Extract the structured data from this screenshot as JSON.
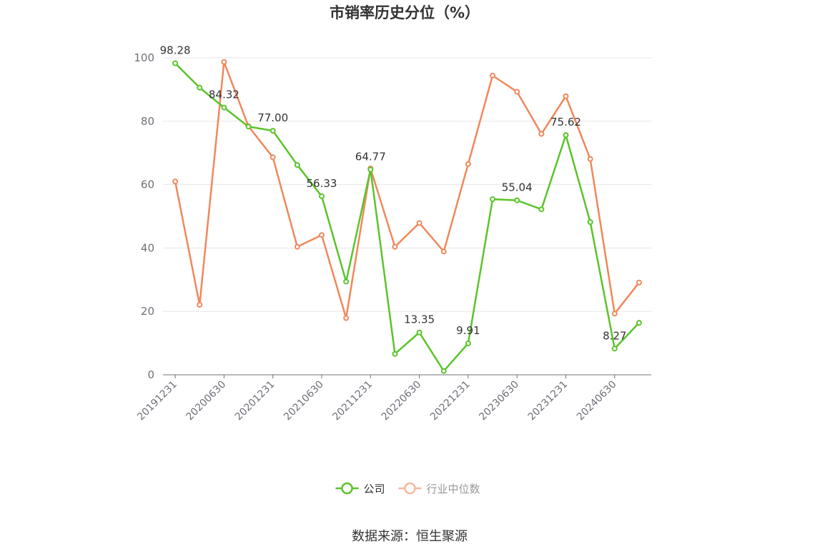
{
  "chart_data": {
    "type": "line",
    "title": "市销率历史分位（%）",
    "categories": [
      "20191231",
      "20200331",
      "20200630",
      "20200930",
      "20201231",
      "20210331",
      "20210630",
      "20210930",
      "20211231",
      "20220331",
      "20220630",
      "20220930",
      "20221231",
      "20230331",
      "20230630",
      "20230930",
      "20231231",
      "20240331",
      "20240630",
      "20240930"
    ],
    "x_tick_labels": [
      "20191231",
      "20200630",
      "20201231",
      "20210630",
      "20211231",
      "20220630",
      "20221231",
      "20230630",
      "20231231",
      "20240630"
    ],
    "ylim": [
      0,
      100
    ],
    "y_ticks": [
      0,
      20,
      40,
      60,
      80,
      100
    ],
    "grid": true,
    "legend_position": "bottom",
    "series": [
      {
        "name": "公司",
        "color": "#5ac42a",
        "values": [
          98.28,
          90.6,
          84.32,
          78.3,
          77.0,
          66.2,
          56.33,
          29.4,
          64.77,
          6.6,
          13.35,
          1.2,
          9.91,
          55.4,
          55.04,
          52.2,
          75.62,
          48.2,
          8.27,
          16.4
        ],
        "labeled_values": [
          {
            "index": 0,
            "text": "98.28"
          },
          {
            "index": 2,
            "text": "84.32"
          },
          {
            "index": 4,
            "text": "77.00"
          },
          {
            "index": 6,
            "text": "56.33"
          },
          {
            "index": 8,
            "text": "64.77"
          },
          {
            "index": 10,
            "text": "13.35"
          },
          {
            "index": 12,
            "text": "9.91"
          },
          {
            "index": 14,
            "text": "55.04"
          },
          {
            "index": 16,
            "text": "75.62"
          },
          {
            "index": 18,
            "text": "8.27"
          }
        ]
      },
      {
        "name": "行业中位数",
        "color": "#f0885a",
        "values": [
          61.0,
          22.1,
          98.7,
          78.4,
          68.6,
          40.4,
          44.1,
          17.9,
          65.1,
          40.4,
          47.9,
          38.9,
          66.5,
          94.4,
          89.3,
          76.0,
          87.9,
          68.1,
          19.3,
          29.1
        ],
        "labeled_values": []
      }
    ],
    "source": "数据来源：恒生聚源"
  }
}
